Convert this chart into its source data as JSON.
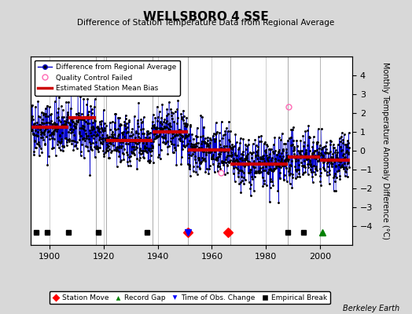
{
  "title": "WELLSBORO 4 SSE",
  "subtitle": "Difference of Station Temperature Data from Regional Average",
  "ylabel": "Monthly Temperature Anomaly Difference (°C)",
  "xlim": [
    1893,
    2012
  ],
  "ylim": [
    -5,
    5
  ],
  "yticks": [
    -4,
    -3,
    -2,
    -1,
    0,
    1,
    2,
    3,
    4
  ],
  "xticks": [
    1900,
    1920,
    1940,
    1960,
    1980,
    2000
  ],
  "background_color": "#d8d8d8",
  "plot_bg_color": "#ffffff",
  "seed": 42,
  "segments": [
    {
      "start": 1893,
      "end": 1917,
      "mean": 1.25,
      "trend": -0.005,
      "std": 0.75
    },
    {
      "start": 1917,
      "end": 1921,
      "mean": 0.6,
      "trend": 0.0,
      "std": 0.75
    },
    {
      "start": 1921,
      "end": 1938,
      "mean": 0.55,
      "trend": 0.0,
      "std": 0.65
    },
    {
      "start": 1938,
      "end": 1951,
      "mean": 1.0,
      "trend": 0.0,
      "std": 0.65
    },
    {
      "start": 1951,
      "end": 1967,
      "mean": 0.15,
      "trend": -0.025,
      "std": 0.7
    },
    {
      "start": 1967,
      "end": 1988,
      "mean": -0.65,
      "trend": -0.005,
      "std": 0.7
    },
    {
      "start": 1988,
      "end": 2000,
      "mean": -0.35,
      "trend": 0.0,
      "std": 0.65
    },
    {
      "start": 2000,
      "end": 2011,
      "mean": -0.45,
      "trend": 0.0,
      "std": 0.65
    }
  ],
  "bias_segments": [
    {
      "start": 1893,
      "end": 1907,
      "bias": 1.25
    },
    {
      "start": 1907,
      "end": 1917,
      "bias": 1.75
    },
    {
      "start": 1921,
      "end": 1938,
      "bias": 0.55
    },
    {
      "start": 1938,
      "end": 1951,
      "bias": 1.0
    },
    {
      "start": 1951,
      "end": 1967,
      "bias": 0.05
    },
    {
      "start": 1967,
      "end": 1988,
      "bias": -0.7
    },
    {
      "start": 1988,
      "end": 2000,
      "bias": -0.35
    },
    {
      "start": 2000,
      "end": 2011,
      "bias": -0.5
    }
  ],
  "vertical_lines": [
    1917,
    1921,
    1938,
    1951,
    1967,
    1988,
    2000
  ],
  "station_moves": [
    1951,
    1966
  ],
  "record_gaps": [
    2001
  ],
  "time_obs_changes": [
    1951
  ],
  "empirical_breaks": [
    1895,
    1899,
    1907,
    1918,
    1936,
    1988,
    1994
  ],
  "qc_failed": [
    {
      "year": 1988.3,
      "value": 2.35
    },
    {
      "year": 1963.5,
      "value": -1.15
    }
  ],
  "data_color": "#0000cc",
  "dot_color": "#000000",
  "bias_color": "#cc0000",
  "vline_color": "#aaaaaa",
  "grid_color": "#bbbbbb"
}
